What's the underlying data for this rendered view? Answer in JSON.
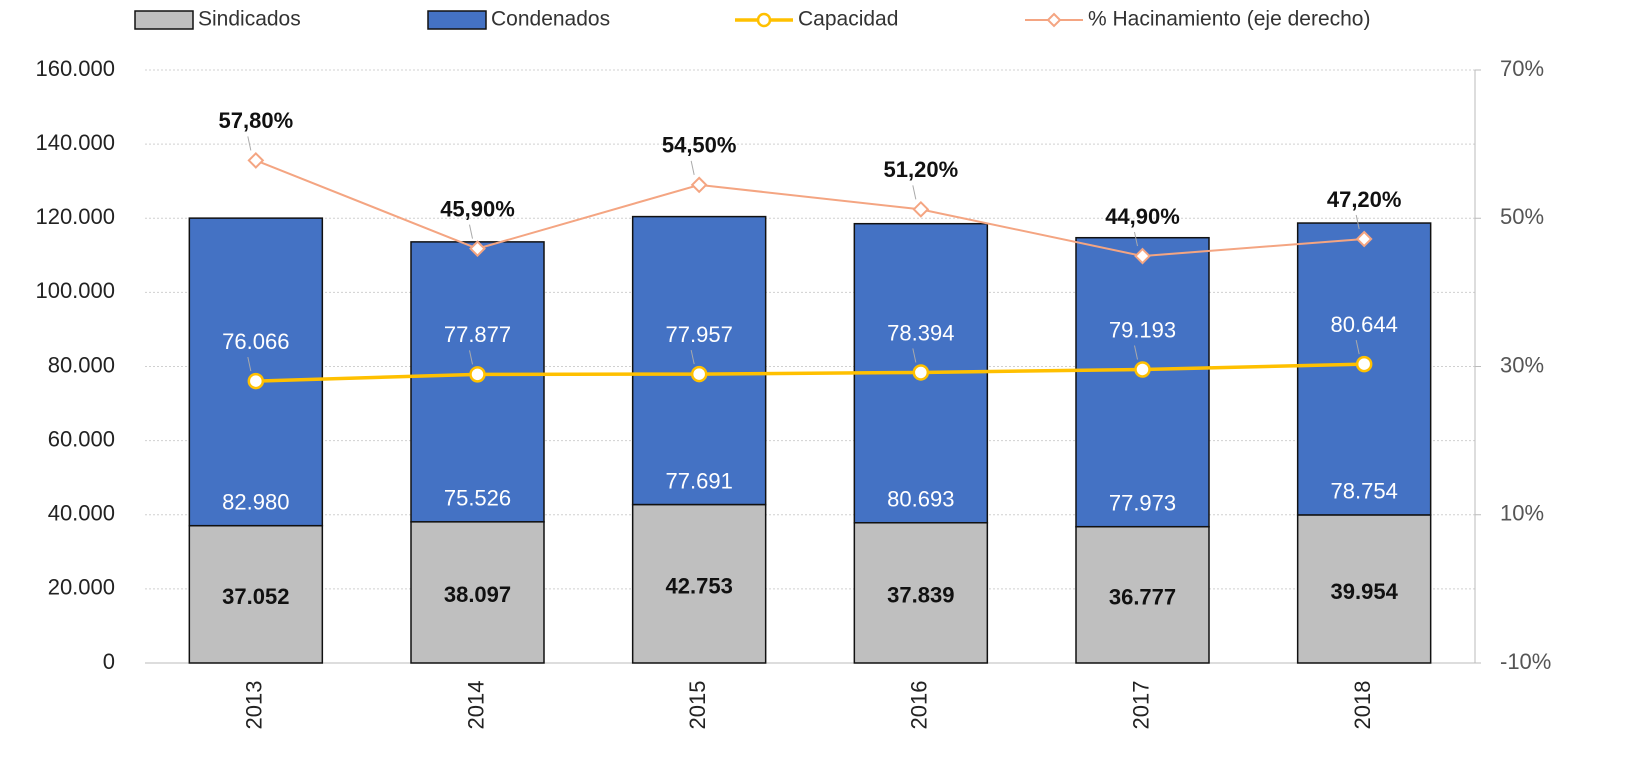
{
  "chart_data": {
    "type": "bar",
    "stacked": true,
    "categories": [
      "2013",
      "2014",
      "2015",
      "2016",
      "2017",
      "2018"
    ],
    "series": [
      {
        "name": "Sindicados",
        "type": "bar",
        "color": "#bfbfbf",
        "values": [
          37052,
          38097,
          42753,
          37839,
          36777,
          39954
        ],
        "value_labels": [
          "37.052",
          "38.097",
          "42.753",
          "37.839",
          "36.777",
          "39.954"
        ]
      },
      {
        "name": "Condenados",
        "type": "bar",
        "color": "#4472c4",
        "values": [
          82980,
          75526,
          77691,
          80693,
          77973,
          78754
        ],
        "value_labels": [
          "82.980",
          "75.526",
          "77.691",
          "80.693",
          "77.973",
          "78.754"
        ]
      },
      {
        "name": "Capacidad",
        "type": "line",
        "color": "#ffc000",
        "marker": "circle",
        "values": [
          76066,
          77877,
          77957,
          78394,
          79193,
          80644
        ],
        "value_labels": [
          "76.066",
          "77.877",
          "77.957",
          "78.394",
          "79.193",
          "80.644"
        ]
      },
      {
        "name": "% Hacinamiento (eje derecho)",
        "type": "line",
        "color": "#f4a582",
        "marker": "diamond",
        "axis": "y2",
        "values": [
          57.8,
          45.9,
          54.5,
          51.2,
          44.9,
          47.2
        ],
        "value_labels": [
          "57,80%",
          "45,90%",
          "54,50%",
          "51,20%",
          "44,90%",
          "47,20%"
        ]
      }
    ],
    "ylim": [
      0,
      160000
    ],
    "yticks": [
      0,
      {
        "value": 20000,
        "label": "20.000"
      },
      {
        "value": 40000,
        "label": "40.000"
      },
      {
        "value": 60000,
        "label": "60.000"
      },
      {
        "value": 80000,
        "label": "80.000"
      },
      {
        "value": 100000,
        "label": "100.000"
      },
      {
        "value": 120000,
        "label": "120.000"
      },
      {
        "value": 140000,
        "label": "140.000"
      },
      {
        "value": 160000,
        "label": "160.000"
      }
    ],
    "y2lim": [
      -10,
      70
    ],
    "y2ticks": [
      {
        "value": -10,
        "label": "-10%"
      },
      {
        "value": 10,
        "label": "10%"
      },
      {
        "value": 30,
        "label": "30%"
      },
      {
        "value": 50,
        "label": "50%"
      },
      {
        "value": 70,
        "label": "70%"
      }
    ],
    "grid": true,
    "legend": "top"
  }
}
